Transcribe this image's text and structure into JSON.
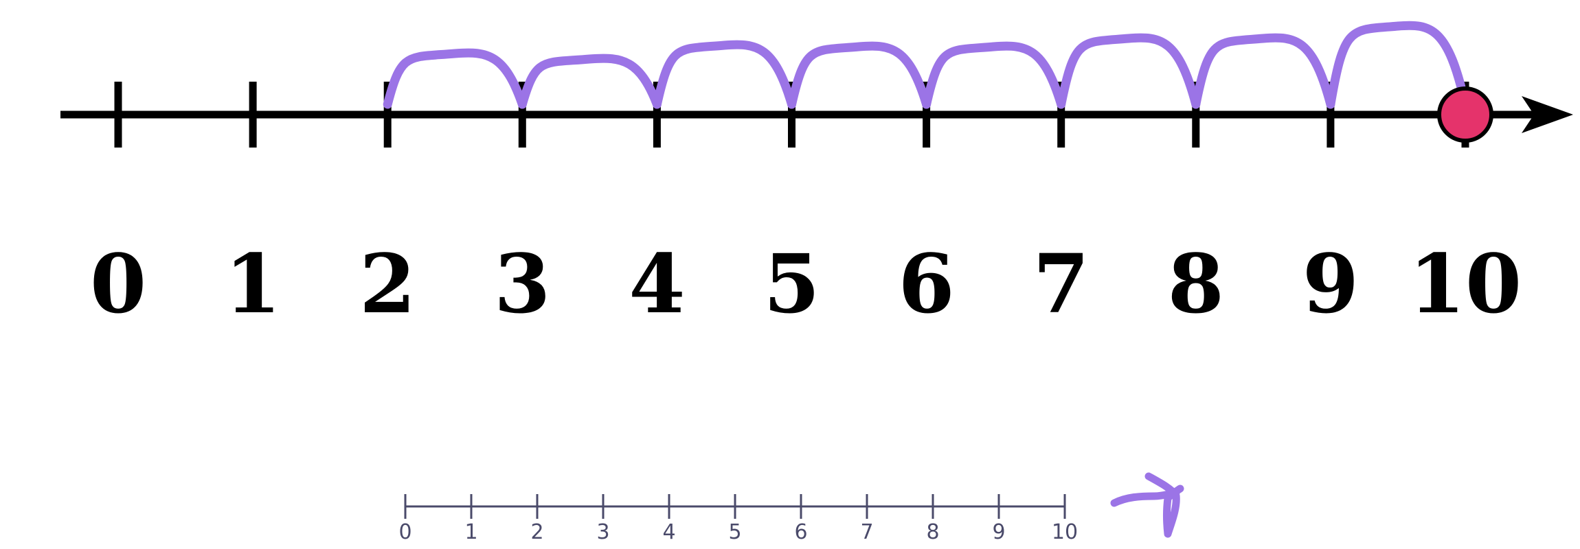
{
  "number_line": {
    "min": 0,
    "max": 10,
    "tick_labels": [
      "0",
      "1",
      "2",
      "3",
      "4",
      "5",
      "6",
      "7",
      "8",
      "9",
      "10"
    ],
    "start_value": 2,
    "end_value": 10,
    "marker_value": 10,
    "hops": [
      {
        "from": 2,
        "to": 3
      },
      {
        "from": 3,
        "to": 4
      },
      {
        "from": 4,
        "to": 5
      },
      {
        "from": 5,
        "to": 6
      },
      {
        "from": 6,
        "to": 7
      },
      {
        "from": 7,
        "to": 8
      },
      {
        "from": 8,
        "to": 9
      },
      {
        "from": 9,
        "to": 10
      }
    ]
  },
  "mini_number_line": {
    "min": 0,
    "max": 10,
    "tick_labels": [
      "0",
      "1",
      "2",
      "3",
      "4",
      "5",
      "6",
      "7",
      "8",
      "9",
      "10"
    ]
  },
  "colors": {
    "axis": "#000000",
    "hop": "#9b74e6",
    "marker_fill": "#e5336b",
    "marker_stroke": "#000000",
    "mini_axis": "#4a4a6a"
  }
}
